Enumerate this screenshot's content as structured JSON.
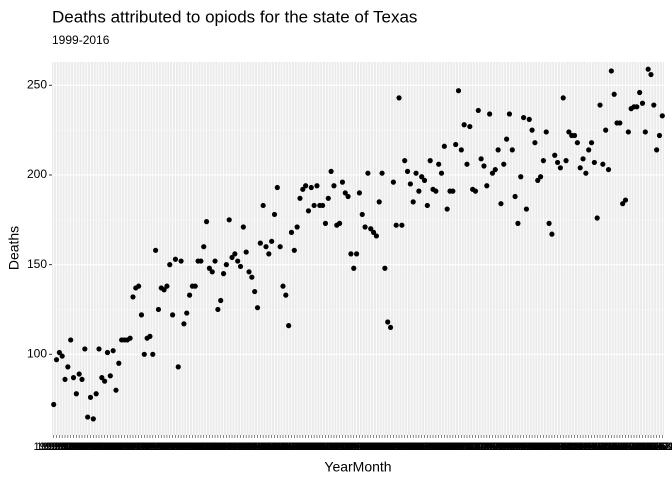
{
  "chart_data": {
    "type": "scatter",
    "title": "Deaths attributed to opiods for the state of Texas",
    "subtitle": "1999-2016",
    "x_label": "YearMonth",
    "y_label": "Deaths",
    "color": "#000000",
    "grid": true,
    "ylim": [
      55,
      263
    ],
    "yticks": [
      100,
      150,
      200,
      250
    ],
    "categories": [
      "1999-01",
      "1999-02",
      "1999-03",
      "1999-04",
      "1999-05",
      "1999-06",
      "1999-07",
      "1999-08",
      "1999-09",
      "1999-10",
      "1999-11",
      "1999-12",
      "2000-01",
      "2000-02",
      "2000-03",
      "2000-04",
      "2000-05",
      "2000-06",
      "2000-07",
      "2000-08",
      "2000-09",
      "2000-10",
      "2000-11",
      "2000-12",
      "2001-01",
      "2001-02",
      "2001-03",
      "2001-04",
      "2001-05",
      "2001-06",
      "2001-07",
      "2001-08",
      "2001-09",
      "2001-10",
      "2001-11",
      "2001-12",
      "2002-01",
      "2002-02",
      "2002-03",
      "2002-04",
      "2002-05",
      "2002-06",
      "2002-07",
      "2002-08",
      "2002-09",
      "2002-10",
      "2002-11",
      "2002-12",
      "2003-01",
      "2003-02",
      "2003-03",
      "2003-04",
      "2003-05",
      "2003-06",
      "2003-07",
      "2003-08",
      "2003-09",
      "2003-10",
      "2003-11",
      "2003-12",
      "2004-01",
      "2004-02",
      "2004-03",
      "2004-04",
      "2004-05",
      "2004-06",
      "2004-07",
      "2004-08",
      "2004-09",
      "2004-10",
      "2004-11",
      "2004-12",
      "2005-01",
      "2005-02",
      "2005-03",
      "2005-04",
      "2005-05",
      "2005-06",
      "2005-07",
      "2005-08",
      "2005-09",
      "2005-10",
      "2005-11",
      "2005-12",
      "2006-01",
      "2006-02",
      "2006-03",
      "2006-04",
      "2006-05",
      "2006-06",
      "2006-07",
      "2006-08",
      "2006-09",
      "2006-10",
      "2006-11",
      "2006-12",
      "2007-01",
      "2007-02",
      "2007-03",
      "2007-04",
      "2007-05",
      "2007-06",
      "2007-07",
      "2007-08",
      "2007-09",
      "2007-10",
      "2007-11",
      "2007-12",
      "2008-01",
      "2008-02",
      "2008-03",
      "2008-04",
      "2008-05",
      "2008-06",
      "2008-07",
      "2008-08",
      "2008-09",
      "2008-10",
      "2008-11",
      "2008-12",
      "2009-01",
      "2009-02",
      "2009-03",
      "2009-04",
      "2009-05",
      "2009-06",
      "2009-07",
      "2009-08",
      "2009-09",
      "2009-10",
      "2009-11",
      "2009-12",
      "2010-01",
      "2010-02",
      "2010-03",
      "2010-04",
      "2010-05",
      "2010-06",
      "2010-07",
      "2010-08",
      "2010-09",
      "2010-10",
      "2010-11",
      "2010-12",
      "2011-01",
      "2011-02",
      "2011-03",
      "2011-04",
      "2011-05",
      "2011-06",
      "2011-07",
      "2011-08",
      "2011-09",
      "2011-10",
      "2011-11",
      "2011-12",
      "2012-01",
      "2012-02",
      "2012-03",
      "2012-04",
      "2012-05",
      "2012-06",
      "2012-07",
      "2012-08",
      "2012-09",
      "2012-10",
      "2012-11",
      "2012-12",
      "2013-01",
      "2013-02",
      "2013-03",
      "2013-04",
      "2013-05",
      "2013-06",
      "2013-07",
      "2013-08",
      "2013-09",
      "2013-10",
      "2013-11",
      "2013-12",
      "2014-01",
      "2014-02",
      "2014-03",
      "2014-04",
      "2014-05",
      "2014-06",
      "2014-07",
      "2014-08",
      "2014-09",
      "2014-10",
      "2014-11",
      "2014-12",
      "2015-01",
      "2015-02",
      "2015-03",
      "2015-04",
      "2015-05",
      "2015-06",
      "2015-07",
      "2015-08",
      "2015-09",
      "2015-10",
      "2015-11",
      "2015-12",
      "2016-01",
      "2016-02",
      "2016-03",
      "2016-04",
      "2016-05",
      "2016-06",
      "2016-07",
      "2016-08",
      "2016-09",
      "2016-10",
      "2016-11",
      "2016-12"
    ],
    "values": [
      72,
      97,
      101,
      99,
      86,
      93,
      108,
      87,
      78,
      89,
      86,
      103,
      65,
      76,
      64,
      78,
      103,
      87,
      85,
      101,
      88,
      102,
      80,
      95,
      108,
      108,
      108,
      109,
      132,
      137,
      138,
      122,
      100,
      109,
      110,
      100,
      158,
      125,
      137,
      136,
      138,
      150,
      122,
      153,
      93,
      152,
      117,
      123,
      133,
      138,
      138,
      152,
      152,
      160,
      174,
      148,
      146,
      152,
      125,
      130,
      145,
      150,
      175,
      154,
      156,
      152,
      149,
      171,
      157,
      146,
      143,
      135,
      126,
      162,
      183,
      160,
      156,
      163,
      178,
      193,
      160,
      138,
      133,
      116,
      168,
      158,
      171,
      187,
      192,
      194,
      180,
      193,
      183,
      194,
      183,
      183,
      173,
      187,
      202,
      194,
      172,
      173,
      196,
      190,
      188,
      156,
      148,
      156,
      190,
      178,
      171,
      201,
      170,
      168,
      166,
      185,
      201,
      148,
      118,
      115,
      196,
      172,
      243,
      172,
      208,
      202,
      195,
      185,
      201,
      191,
      199,
      197,
      183,
      208,
      192,
      191,
      206,
      201,
      216,
      181,
      191,
      191,
      217,
      247,
      214,
      228,
      206,
      227,
      192,
      191,
      236,
      209,
      205,
      194,
      234,
      201,
      203,
      214,
      184,
      206,
      220,
      234,
      214,
      188,
      173,
      199,
      232,
      181,
      231,
      225,
      218,
      197,
      199,
      208,
      224,
      173,
      167,
      211,
      207,
      204,
      243,
      208,
      224,
      222,
      222,
      218,
      204,
      209,
      201,
      214,
      218,
      207,
      176,
      239,
      206,
      225,
      203,
      258,
      245,
      229,
      229,
      184,
      186,
      224,
      237,
      238,
      238,
      246,
      240,
      224,
      259,
      256,
      239,
      214,
      222,
      233
    ]
  }
}
